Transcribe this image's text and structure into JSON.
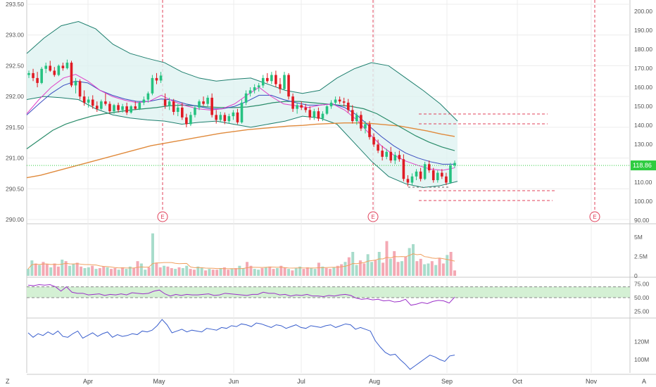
{
  "chart_data": {
    "type": "candlestick",
    "colors": {
      "up": "#26c281",
      "down": "#e01b24",
      "bb_band": "#1e7f6e",
      "bb_fill": "#dff3f1",
      "ma_fast": "#e040c8",
      "ma_mid": "#3a4cc0",
      "ma_slow": "#2a8c6a",
      "ma_long": "#e08a3c",
      "price_line": "#2ecc40",
      "rsi": "#9b30c8",
      "rsi_band": "#cfeecf",
      "obv": "#3a5fcd",
      "events": "#e0405a",
      "vol_up": "#a8dccb",
      "vol_down": "#f4a9b4",
      "vol_ma": "#f0a060"
    },
    "price_axis": {
      "ticks": [
        "293.50",
        "293.00",
        "292.50",
        "292.00",
        "291.50",
        "291.00",
        "290.50",
        "290.00"
      ],
      "min": 290.0,
      "max": 293.5
    },
    "right_axis": {
      "ticks": [
        "200.00",
        "190.00",
        "180.00",
        "170.00",
        "160.00",
        "150.00",
        "140.00",
        "130.00",
        "120.00",
        "110.00",
        "100.00",
        "90.00"
      ],
      "min": 90,
      "max": 200
    },
    "last_price_label": "118.86",
    "last_price_value": 118.86,
    "x_labels": [
      "Apr",
      "May",
      "Jun",
      "Jul",
      "Aug",
      "Sep",
      "Oct",
      "Nov"
    ],
    "event_label": "E",
    "candles": [
      [
        292.35,
        292.42,
        292.3,
        292.38
      ],
      [
        292.38,
        292.45,
        292.25,
        292.3
      ],
      [
        292.3,
        292.4,
        292.15,
        292.22
      ],
      [
        292.22,
        292.48,
        292.2,
        292.45
      ],
      [
        292.45,
        292.55,
        292.38,
        292.5
      ],
      [
        292.5,
        292.58,
        292.4,
        292.42
      ],
      [
        292.42,
        292.48,
        292.32,
        292.35
      ],
      [
        292.35,
        292.52,
        292.33,
        292.5
      ],
      [
        292.5,
        292.55,
        292.42,
        292.46
      ],
      [
        292.46,
        292.6,
        292.44,
        292.55
      ],
      [
        292.55,
        292.58,
        292.15,
        292.18
      ],
      [
        292.18,
        292.3,
        292.05,
        292.25
      ],
      [
        292.25,
        292.28,
        291.95,
        292.0
      ],
      [
        292.0,
        292.1,
        291.85,
        291.9
      ],
      [
        291.9,
        292.0,
        291.82,
        291.95
      ],
      [
        291.95,
        292.02,
        291.8,
        291.85
      ],
      [
        291.85,
        291.92,
        291.75,
        291.8
      ],
      [
        291.8,
        291.95,
        291.78,
        291.92
      ],
      [
        291.92,
        292.05,
        291.85,
        291.88
      ],
      [
        291.88,
        291.92,
        291.72,
        291.76
      ],
      [
        291.76,
        291.88,
        291.72,
        291.86
      ],
      [
        291.86,
        291.9,
        291.74,
        291.78
      ],
      [
        291.78,
        291.88,
        291.74,
        291.84
      ],
      [
        291.84,
        291.9,
        291.7,
        291.74
      ],
      [
        291.74,
        291.86,
        291.72,
        291.84
      ],
      [
        291.84,
        291.92,
        291.78,
        291.8
      ],
      [
        291.8,
        291.92,
        291.78,
        291.9
      ],
      [
        291.9,
        292.0,
        291.86,
        291.95
      ],
      [
        291.95,
        292.08,
        291.9,
        292.05
      ],
      [
        292.05,
        292.35,
        292.02,
        292.3
      ],
      [
        292.3,
        292.38,
        292.2,
        292.26
      ],
      [
        292.26,
        292.4,
        292.22,
        292.34
      ],
      [
        291.95,
        292.05,
        291.8,
        291.85
      ],
      [
        291.85,
        291.98,
        291.78,
        291.92
      ],
      [
        291.92,
        291.96,
        291.7,
        291.75
      ],
      [
        291.75,
        291.88,
        291.68,
        291.82
      ],
      [
        291.82,
        291.9,
        291.62,
        291.66
      ],
      [
        291.66,
        291.72,
        291.5,
        291.55
      ],
      [
        291.55,
        291.75,
        291.52,
        291.7
      ],
      [
        291.7,
        291.85,
        291.66,
        291.82
      ],
      [
        291.82,
        291.95,
        291.78,
        291.92
      ],
      [
        291.92,
        292.0,
        291.85,
        291.88
      ],
      [
        291.88,
        292.02,
        291.84,
        291.98
      ],
      [
        291.98,
        292.05,
        291.66,
        291.7
      ],
      [
        291.7,
        291.78,
        291.56,
        291.62
      ],
      [
        291.62,
        291.75,
        291.58,
        291.7
      ],
      [
        291.7,
        291.74,
        291.55,
        291.6
      ],
      [
        291.6,
        291.72,
        291.56,
        291.68
      ],
      [
        291.68,
        291.78,
        291.62,
        291.74
      ],
      [
        291.74,
        291.8,
        291.55,
        291.58
      ],
      [
        291.58,
        291.95,
        291.56,
        291.9
      ],
      [
        291.9,
        292.1,
        291.86,
        292.05
      ],
      [
        292.05,
        292.15,
        292.0,
        292.1
      ],
      [
        292.1,
        292.2,
        292.05,
        292.15
      ],
      [
        292.15,
        292.22,
        292.08,
        292.18
      ],
      [
        292.18,
        292.35,
        292.14,
        292.3
      ],
      [
        292.3,
        292.38,
        292.22,
        292.25
      ],
      [
        292.25,
        292.4,
        292.2,
        292.35
      ],
      [
        292.35,
        292.42,
        292.15,
        292.2
      ],
      [
        292.2,
        292.3,
        292.05,
        292.12
      ],
      [
        292.12,
        292.4,
        292.1,
        292.35
      ],
      [
        292.35,
        292.38,
        291.95,
        292.0
      ],
      [
        292.0,
        292.05,
        291.75,
        291.8
      ],
      [
        291.8,
        291.9,
        291.72,
        291.86
      ],
      [
        291.86,
        291.92,
        291.78,
        291.82
      ],
      [
        291.82,
        291.88,
        291.74,
        291.78
      ],
      [
        291.78,
        291.84,
        291.62,
        291.66
      ],
      [
        291.66,
        291.8,
        291.62,
        291.76
      ],
      [
        291.76,
        291.82,
        291.6,
        291.64
      ],
      [
        291.64,
        291.76,
        291.6,
        291.72
      ],
      [
        291.72,
        291.86,
        291.7,
        291.84
      ],
      [
        291.84,
        291.94,
        291.8,
        291.9
      ],
      [
        291.9,
        292.0,
        291.86,
        291.95
      ],
      [
        291.95,
        292.0,
        291.88,
        291.92
      ],
      [
        291.92,
        291.98,
        291.84,
        291.9
      ],
      [
        291.9,
        291.96,
        291.74,
        291.78
      ],
      [
        291.78,
        291.86,
        291.56,
        291.6
      ],
      [
        291.6,
        291.74,
        291.54,
        291.7
      ],
      [
        291.7,
        291.76,
        291.44,
        291.48
      ],
      [
        291.48,
        291.6,
        291.4,
        291.55
      ],
      [
        291.55,
        291.6,
        291.3,
        291.34
      ],
      [
        291.34,
        291.4,
        291.18,
        291.22
      ],
      [
        291.22,
        291.3,
        291.08,
        291.12
      ],
      [
        291.12,
        291.2,
        290.96,
        291.02
      ],
      [
        291.02,
        291.15,
        290.98,
        291.1
      ],
      [
        291.1,
        291.18,
        290.92,
        290.96
      ],
      [
        290.96,
        291.1,
        290.9,
        291.05
      ],
      [
        291.05,
        291.12,
        290.94,
        290.98
      ],
      [
        290.98,
        291.06,
        290.62,
        290.66
      ],
      [
        290.66,
        290.72,
        290.54,
        290.6
      ],
      [
        290.6,
        290.75,
        290.56,
        290.7
      ],
      [
        290.7,
        290.82,
        290.64,
        290.78
      ],
      [
        290.78,
        290.84,
        290.62,
        290.66
      ],
      [
        290.66,
        290.94,
        290.64,
        290.9
      ],
      [
        290.9,
        290.96,
        290.76,
        290.8
      ],
      [
        290.8,
        290.84,
        290.6,
        290.64
      ],
      [
        290.64,
        290.8,
        290.6,
        290.76
      ],
      [
        290.76,
        290.82,
        290.66,
        290.7
      ],
      [
        290.7,
        290.76,
        290.56,
        290.6
      ],
      [
        290.6,
        290.92,
        290.58,
        290.88
      ],
      [
        290.88,
        290.96,
        290.84,
        290.92
      ]
    ],
    "bollinger": {
      "upper": [
        292.7,
        292.95,
        293.15,
        293.22,
        293.1,
        292.85,
        292.7,
        292.62,
        292.55,
        292.4,
        292.3,
        292.25,
        292.28,
        292.3,
        292.2,
        292.1,
        292.05,
        292.1,
        292.3,
        292.45,
        292.55,
        292.5,
        292.3,
        292.1,
        291.88,
        291.6
      ],
      "lower": [
        291.95,
        292.0,
        291.98,
        291.95,
        291.8,
        291.7,
        291.65,
        291.62,
        291.6,
        291.55,
        291.58,
        291.6,
        291.55,
        291.5,
        291.55,
        291.6,
        291.68,
        291.65,
        291.55,
        291.25,
        290.95,
        290.7,
        290.58,
        290.52,
        290.55,
        290.62
      ]
    },
    "ma_fast": [
      291.72,
      291.95,
      292.15,
      292.3,
      292.36,
      292.25,
      292.1,
      292.0,
      291.94,
      291.9,
      291.92,
      292.02,
      291.92,
      291.85,
      291.8,
      291.78,
      291.8,
      291.88,
      292.02,
      292.15,
      292.0,
      291.88,
      291.85,
      291.82,
      291.86,
      291.88,
      291.78,
      291.62,
      291.4,
      291.2,
      291.05,
      290.95,
      290.88,
      290.82,
      290.8,
      290.84
    ],
    "ma_mid": [
      291.7,
      291.88,
      292.05,
      292.18,
      292.25,
      292.22,
      292.1,
      292.02,
      291.96,
      291.92,
      291.92,
      291.96,
      291.94,
      291.88,
      291.84,
      291.8,
      291.8,
      291.84,
      291.92,
      292.02,
      292.02,
      291.95,
      291.9,
      291.86,
      291.86,
      291.88,
      291.82,
      291.7,
      291.52,
      291.35,
      291.2,
      291.08,
      291.0,
      290.94,
      290.9,
      290.9
    ],
    "ma_slow": [
      291.15,
      291.3,
      291.45,
      291.55,
      291.62,
      291.68,
      291.72,
      291.75,
      291.78,
      291.8,
      291.82,
      291.85,
      291.86,
      291.85,
      291.83,
      291.82,
      291.82,
      291.83,
      291.86,
      291.9,
      291.92,
      291.92,
      291.9,
      291.88,
      291.86,
      291.84,
      291.8,
      291.72,
      291.6,
      291.48,
      291.36,
      291.26,
      291.18,
      291.12
    ],
    "ma_long": [
      290.68,
      290.72,
      290.78,
      290.84,
      290.9,
      290.96,
      291.02,
      291.08,
      291.14,
      291.2,
      291.24,
      291.28,
      291.32,
      291.36,
      291.4,
      291.43,
      291.46,
      291.48,
      291.5,
      291.52,
      291.53,
      291.55,
      291.56,
      291.57,
      291.57,
      291.56,
      291.54,
      291.52,
      291.48,
      291.44,
      291.39,
      291.35
    ],
    "volume": [
      0.9,
      2.0,
      1.6,
      1.4,
      1.8,
      1.5,
      1.1,
      1.6,
      1.2,
      2.1,
      1.9,
      1.3,
      1.5,
      1.7,
      1.2,
      1.0,
      1.1,
      1.3,
      0.9,
      1.0,
      1.2,
      1.1,
      0.9,
      1.0,
      0.8,
      1.1,
      0.9,
      1.2,
      1.0,
      1.9,
      1.6,
      0.8,
      1.1,
      5.5,
      1.7,
      1.1,
      1.3,
      1.2,
      1.0,
      0.9,
      1.1,
      1.0,
      1.3,
      0.9,
      0.8,
      1.2,
      1.1,
      0.7,
      0.9,
      0.8,
      0.8,
      1.0,
      1.1,
      0.8,
      0.9,
      1.0,
      1.3,
      1.0,
      1.8,
      1.3,
      0.9,
      0.8,
      1.0,
      1.1,
      1.2,
      0.9,
      1.0,
      1.3,
      1.1,
      0.9,
      0.7,
      1.0,
      1.2,
      0.9,
      1.1,
      1.0,
      0.9,
      1.7,
      1.2,
      1.0,
      0.9,
      1.1,
      1.3,
      1.5,
      1.8,
      2.4,
      3.1,
      1.4,
      2.0,
      1.6,
      2.8,
      1.8,
      2.0,
      3.1,
      1.7,
      4.5,
      2.2,
      3.2,
      1.8,
      1.9,
      2.5,
      3.6,
      4.1,
      1.9,
      2.2,
      1.5,
      1.6,
      1.9,
      1.4,
      2.3,
      1.6,
      2.7,
      3.1,
      0.7
    ],
    "volume_ticks": [
      "5M",
      "2.5M",
      "0"
    ],
    "rsi": [
      73,
      72,
      74,
      73,
      74,
      70,
      62,
      70,
      60,
      58,
      58,
      55,
      56,
      57,
      54,
      56,
      55,
      57,
      55,
      59,
      58,
      57,
      58,
      62,
      64,
      57,
      53,
      56,
      54,
      56,
      55,
      55,
      56,
      57,
      54,
      55,
      58,
      57,
      56,
      55,
      54,
      56,
      56,
      60,
      58,
      58,
      55,
      56,
      53,
      55,
      54,
      56,
      53,
      53,
      52,
      54,
      53,
      55,
      56,
      54,
      49,
      47,
      48,
      46,
      47,
      44,
      45,
      42,
      43,
      47,
      36,
      38,
      41,
      39,
      43,
      45,
      44,
      40,
      51
    ],
    "rsi_ticks": [
      "75.00",
      "50.00",
      "25.00"
    ],
    "obv": [
      130,
      125,
      129,
      127,
      131,
      128,
      132,
      126,
      125,
      129,
      132,
      124,
      127,
      130,
      126,
      129,
      131,
      125,
      128,
      126,
      127,
      129,
      128,
      132,
      131,
      133,
      138,
      145,
      139,
      130,
      132,
      134,
      131,
      133,
      132,
      131,
      135,
      134,
      133,
      136,
      135,
      138,
      137,
      140,
      139,
      137,
      141,
      140,
      138,
      136,
      139,
      138,
      135,
      137,
      139,
      136,
      135,
      138,
      137,
      136,
      138,
      139,
      136,
      138,
      140,
      139,
      134,
      136,
      134,
      132,
      121,
      114,
      108,
      105,
      106,
      100,
      95,
      89,
      93,
      97,
      101,
      105,
      103,
      100,
      98,
      104,
      105
    ],
    "obv_ticks": [
      "120M",
      "100M"
    ],
    "bottom_left": "Z",
    "bottom_right": "A"
  }
}
